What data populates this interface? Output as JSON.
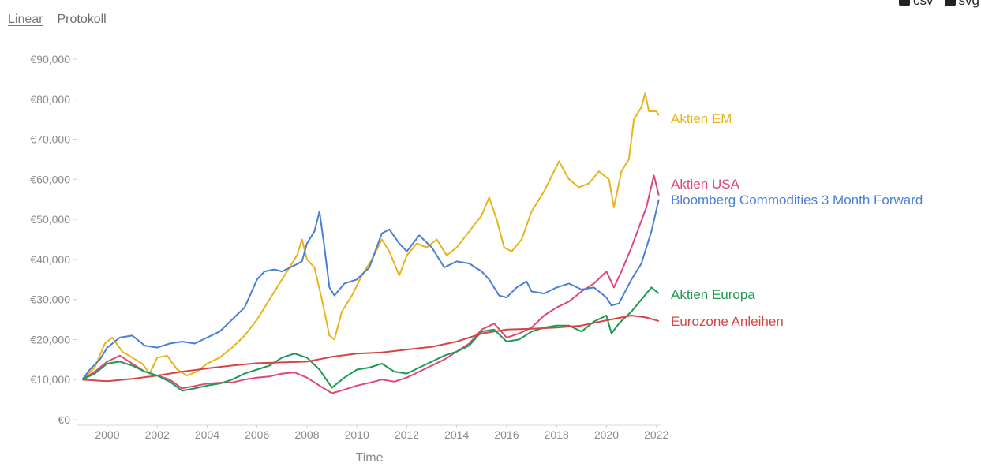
{
  "controls": {
    "scale_tabs": [
      {
        "label": "Linear",
        "active": true
      },
      {
        "label": "Protokoll",
        "active": false
      }
    ],
    "exports": [
      {
        "label": "csv",
        "icon": "download-icon"
      },
      {
        "label": "svg",
        "icon": "download-icon"
      }
    ]
  },
  "chart_data": {
    "type": "line",
    "title": "",
    "xlabel": "Time",
    "ylabel": "",
    "xlim": [
      1998.8,
      2022.2
    ],
    "ylim": [
      0,
      90000
    ],
    "x_ticks": [
      2000,
      2002,
      2004,
      2006,
      2008,
      2010,
      2012,
      2014,
      2016,
      2018,
      2020,
      2022
    ],
    "y_ticks": [
      {
        "value": 0,
        "label": "€0"
      },
      {
        "value": 10000,
        "label": "€10,000"
      },
      {
        "value": 20000,
        "label": "€20,000"
      },
      {
        "value": 30000,
        "label": "€30,000"
      },
      {
        "value": 40000,
        "label": "€40,000"
      },
      {
        "value": 50000,
        "label": "€50,000"
      },
      {
        "value": 60000,
        "label": "€60,000"
      },
      {
        "value": 70000,
        "label": "€70,000"
      },
      {
        "value": 80000,
        "label": "€80,000"
      },
      {
        "value": 90000,
        "label": "€90,000"
      }
    ],
    "grid": false,
    "legend": "direct labels at right end of lines",
    "series": [
      {
        "name": "Aktien EM",
        "color": "#e8b41b",
        "points": [
          [
            1999,
            10000
          ],
          [
            1999.5,
            13000
          ],
          [
            1999.9,
            19000
          ],
          [
            2000.2,
            20500
          ],
          [
            2000.6,
            17000
          ],
          [
            2001,
            15500
          ],
          [
            2001.4,
            14000
          ],
          [
            2001.7,
            11500
          ],
          [
            2002,
            15500
          ],
          [
            2002.4,
            16000
          ],
          [
            2002.8,
            12500
          ],
          [
            2003.2,
            11000
          ],
          [
            2003.6,
            12000
          ],
          [
            2004,
            14000
          ],
          [
            2004.5,
            15500
          ],
          [
            2005,
            18000
          ],
          [
            2005.5,
            21000
          ],
          [
            2006,
            25000
          ],
          [
            2006.4,
            29000
          ],
          [
            2006.8,
            33000
          ],
          [
            2007.2,
            37000
          ],
          [
            2007.6,
            41000
          ],
          [
            2007.8,
            45000
          ],
          [
            2008,
            40000
          ],
          [
            2008.3,
            38000
          ],
          [
            2008.6,
            30000
          ],
          [
            2008.9,
            21000
          ],
          [
            2009.1,
            20000
          ],
          [
            2009.4,
            27000
          ],
          [
            2009.8,
            31000
          ],
          [
            2010.2,
            36000
          ],
          [
            2010.6,
            40000
          ],
          [
            2011,
            45000
          ],
          [
            2011.3,
            42000
          ],
          [
            2011.7,
            36000
          ],
          [
            2012,
            41000
          ],
          [
            2012.4,
            44000
          ],
          [
            2012.8,
            43000
          ],
          [
            2013.2,
            45000
          ],
          [
            2013.6,
            41000
          ],
          [
            2014,
            43000
          ],
          [
            2014.5,
            47000
          ],
          [
            2015,
            51000
          ],
          [
            2015.3,
            55500
          ],
          [
            2015.6,
            50000
          ],
          [
            2015.9,
            43000
          ],
          [
            2016.2,
            42000
          ],
          [
            2016.6,
            45000
          ],
          [
            2017,
            52000
          ],
          [
            2017.5,
            57000
          ],
          [
            2017.9,
            62000
          ],
          [
            2018.1,
            64500
          ],
          [
            2018.5,
            60000
          ],
          [
            2018.9,
            58000
          ],
          [
            2019.3,
            59000
          ],
          [
            2019.7,
            62000
          ],
          [
            2020.1,
            60000
          ],
          [
            2020.3,
            53000
          ],
          [
            2020.6,
            62000
          ],
          [
            2020.9,
            65000
          ],
          [
            2021.1,
            75000
          ],
          [
            2021.4,
            78000
          ],
          [
            2021.55,
            81500
          ],
          [
            2021.7,
            77000
          ],
          [
            2022,
            77000
          ],
          [
            2022.1,
            76000
          ]
        ]
      },
      {
        "name": "Aktien USA",
        "color": "#e0467c",
        "points": [
          [
            1999,
            10000
          ],
          [
            1999.5,
            12000
          ],
          [
            2000,
            14500
          ],
          [
            2000.5,
            16000
          ],
          [
            2001,
            14000
          ],
          [
            2001.5,
            12000
          ],
          [
            2002,
            11000
          ],
          [
            2002.5,
            10000
          ],
          [
            2003,
            7800
          ],
          [
            2003.5,
            8400
          ],
          [
            2004,
            9000
          ],
          [
            2004.5,
            9200
          ],
          [
            2005,
            9300
          ],
          [
            2005.5,
            10000
          ],
          [
            2006,
            10500
          ],
          [
            2006.5,
            10800
          ],
          [
            2007,
            11500
          ],
          [
            2007.5,
            11800
          ],
          [
            2008,
            10500
          ],
          [
            2008.5,
            8500
          ],
          [
            2009,
            6600
          ],
          [
            2009.5,
            7500
          ],
          [
            2010,
            8500
          ],
          [
            2010.5,
            9200
          ],
          [
            2011,
            10000
          ],
          [
            2011.5,
            9500
          ],
          [
            2012,
            10500
          ],
          [
            2012.5,
            12000
          ],
          [
            2013,
            13500
          ],
          [
            2013.5,
            15000
          ],
          [
            2014,
            17000
          ],
          [
            2014.5,
            19000
          ],
          [
            2015,
            22500
          ],
          [
            2015.5,
            24000
          ],
          [
            2016,
            20500
          ],
          [
            2016.5,
            21500
          ],
          [
            2017,
            23000
          ],
          [
            2017.5,
            26000
          ],
          [
            2018,
            28000
          ],
          [
            2018.5,
            29500
          ],
          [
            2019,
            32000
          ],
          [
            2019.5,
            34000
          ],
          [
            2020,
            37000
          ],
          [
            2020.3,
            33000
          ],
          [
            2020.6,
            37000
          ],
          [
            2021,
            43000
          ],
          [
            2021.3,
            48000
          ],
          [
            2021.6,
            53000
          ],
          [
            2021.9,
            61000
          ],
          [
            2022.1,
            56000
          ]
        ]
      },
      {
        "name": "Bloomberg Commodities 3 Month Forward",
        "color": "#4a7fd4",
        "points": [
          [
            1999,
            10000
          ],
          [
            1999.3,
            12500
          ],
          [
            1999.7,
            15000
          ],
          [
            2000,
            18000
          ],
          [
            2000.5,
            20500
          ],
          [
            2001,
            21000
          ],
          [
            2001.5,
            18500
          ],
          [
            2002,
            18000
          ],
          [
            2002.5,
            19000
          ],
          [
            2003,
            19500
          ],
          [
            2003.5,
            19000
          ],
          [
            2004,
            20500
          ],
          [
            2004.5,
            22000
          ],
          [
            2005,
            25000
          ],
          [
            2005.5,
            28000
          ],
          [
            2006,
            35000
          ],
          [
            2006.3,
            37000
          ],
          [
            2006.7,
            37500
          ],
          [
            2007,
            37000
          ],
          [
            2007.5,
            38500
          ],
          [
            2007.8,
            39500
          ],
          [
            2008,
            44000
          ],
          [
            2008.3,
            47000
          ],
          [
            2008.5,
            52000
          ],
          [
            2008.7,
            43000
          ],
          [
            2008.9,
            33000
          ],
          [
            2009.1,
            31000
          ],
          [
            2009.5,
            34000
          ],
          [
            2010,
            35000
          ],
          [
            2010.5,
            38000
          ],
          [
            2011,
            46500
          ],
          [
            2011.3,
            47500
          ],
          [
            2011.7,
            44000
          ],
          [
            2012,
            42000
          ],
          [
            2012.5,
            46000
          ],
          [
            2013,
            43000
          ],
          [
            2013.5,
            38000
          ],
          [
            2014,
            39500
          ],
          [
            2014.5,
            39000
          ],
          [
            2015,
            37000
          ],
          [
            2015.3,
            35000
          ],
          [
            2015.7,
            31000
          ],
          [
            2016,
            30500
          ],
          [
            2016.4,
            33000
          ],
          [
            2016.8,
            34500
          ],
          [
            2017,
            32000
          ],
          [
            2017.5,
            31500
          ],
          [
            2018,
            33000
          ],
          [
            2018.5,
            34000
          ],
          [
            2019,
            32500
          ],
          [
            2019.5,
            33000
          ],
          [
            2020,
            30500
          ],
          [
            2020.2,
            28500
          ],
          [
            2020.5,
            29000
          ],
          [
            2021,
            35000
          ],
          [
            2021.4,
            39000
          ],
          [
            2021.8,
            47000
          ],
          [
            2022.1,
            55000
          ]
        ]
      },
      {
        "name": "Aktien Europa",
        "color": "#1f9a52",
        "points": [
          [
            1999,
            10000
          ],
          [
            1999.5,
            11500
          ],
          [
            2000,
            14000
          ],
          [
            2000.5,
            14500
          ],
          [
            2001,
            13500
          ],
          [
            2001.5,
            12000
          ],
          [
            2002,
            11000
          ],
          [
            2002.5,
            9500
          ],
          [
            2003,
            7200
          ],
          [
            2003.5,
            7800
          ],
          [
            2004,
            8500
          ],
          [
            2004.5,
            9000
          ],
          [
            2005,
            10000
          ],
          [
            2005.5,
            11500
          ],
          [
            2006,
            12500
          ],
          [
            2006.5,
            13500
          ],
          [
            2007,
            15500
          ],
          [
            2007.5,
            16500
          ],
          [
            2008,
            15500
          ],
          [
            2008.5,
            12500
          ],
          [
            2009,
            8000
          ],
          [
            2009.5,
            10500
          ],
          [
            2010,
            12500
          ],
          [
            2010.5,
            13000
          ],
          [
            2011,
            14000
          ],
          [
            2011.5,
            12000
          ],
          [
            2012,
            11500
          ],
          [
            2012.5,
            13000
          ],
          [
            2013,
            14500
          ],
          [
            2013.5,
            16000
          ],
          [
            2014,
            17000
          ],
          [
            2014.5,
            18500
          ],
          [
            2015,
            22000
          ],
          [
            2015.5,
            22500
          ],
          [
            2016,
            19500
          ],
          [
            2016.5,
            20000
          ],
          [
            2017,
            22000
          ],
          [
            2017.5,
            23000
          ],
          [
            2018,
            23500
          ],
          [
            2018.5,
            23500
          ],
          [
            2019,
            22000
          ],
          [
            2019.5,
            24500
          ],
          [
            2020,
            26000
          ],
          [
            2020.2,
            21500
          ],
          [
            2020.5,
            24000
          ],
          [
            2021,
            27000
          ],
          [
            2021.4,
            30000
          ],
          [
            2021.8,
            33000
          ],
          [
            2022.1,
            31500
          ]
        ]
      },
      {
        "name": "Eurozone Anleihen",
        "color": "#d64545",
        "points": [
          [
            1999,
            10000
          ],
          [
            2000,
            9600
          ],
          [
            2001,
            10200
          ],
          [
            2002,
            11000
          ],
          [
            2003,
            12000
          ],
          [
            2004,
            12800
          ],
          [
            2005,
            13500
          ],
          [
            2006,
            14100
          ],
          [
            2007,
            14300
          ],
          [
            2008,
            14500
          ],
          [
            2009,
            15700
          ],
          [
            2010,
            16500
          ],
          [
            2011,
            16800
          ],
          [
            2012,
            17500
          ],
          [
            2013,
            18200
          ],
          [
            2014,
            19500
          ],
          [
            2015,
            21500
          ],
          [
            2015.5,
            22000
          ],
          [
            2016,
            22500
          ],
          [
            2017,
            22700
          ],
          [
            2018,
            23000
          ],
          [
            2019,
            23500
          ],
          [
            2020,
            24800
          ],
          [
            2021,
            26000
          ],
          [
            2021.6,
            25500
          ],
          [
            2022.1,
            24600
          ]
        ]
      }
    ]
  }
}
